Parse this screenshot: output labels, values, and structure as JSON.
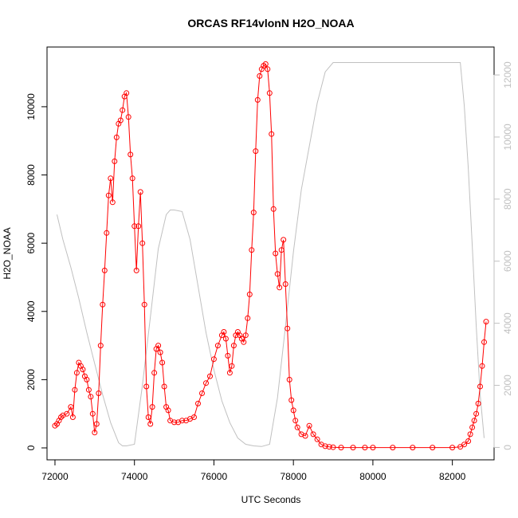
{
  "chart_data": {
    "type": "line",
    "title": "ORCAS RF14vlonN H2O_NOAA",
    "xlabel": "UTC Seconds",
    "ylabel": "H2O_NOAA",
    "xlim": [
      71800,
      83050
    ],
    "ylim": [
      -350,
      11750
    ],
    "x_ticks": [
      72000,
      74000,
      76000,
      78000,
      80000,
      82000
    ],
    "y_ticks": [
      0,
      2000,
      4000,
      6000,
      8000,
      10000
    ],
    "y2lim": [
      -400,
      12900
    ],
    "y2_ticks": [
      0,
      2000,
      4000,
      6000,
      8000,
      10000,
      12000
    ],
    "colors": {
      "primary": "#ff0000",
      "secondary": "#c0c0c0",
      "axis": "#000000",
      "right_axis": "#c0c0c0"
    },
    "series": [
      {
        "role": "primary",
        "marker": "circle",
        "x": [
          72000,
          72050,
          72100,
          72150,
          72200,
          72300,
          72400,
          72450,
          72500,
          72550,
          72600,
          72650,
          72700,
          72750,
          72800,
          72850,
          72900,
          72950,
          73000,
          73050,
          73100,
          73150,
          73200,
          73250,
          73300,
          73350,
          73400,
          73450,
          73500,
          73550,
          73600,
          73650,
          73700,
          73750,
          73800,
          73850,
          73900,
          73950,
          74000,
          74050,
          74100,
          74150,
          74200,
          74250,
          74300,
          74350,
          74400,
          74450,
          74500,
          74550,
          74600,
          74650,
          74700,
          74750,
          74800,
          74850,
          74900,
          75000,
          75100,
          75200,
          75300,
          75400,
          75500,
          75600,
          75700,
          75800,
          75900,
          76000,
          76100,
          76200,
          76250,
          76300,
          76350,
          76400,
          76450,
          76500,
          76550,
          76600,
          76650,
          76700,
          76750,
          76800,
          76850,
          76900,
          76950,
          77000,
          77050,
          77100,
          77150,
          77200,
          77250,
          77300,
          77350,
          77400,
          77450,
          77500,
          77550,
          77600,
          77650,
          77700,
          77750,
          77800,
          77850,
          77900,
          77950,
          78000,
          78050,
          78100,
          78200,
          78300,
          78400,
          78500,
          78600,
          78700,
          78800,
          78900,
          79000,
          79200,
          79500,
          79800,
          80000,
          80500,
          81000,
          81500,
          82000,
          82200,
          82300,
          82400,
          82450,
          82500,
          82550,
          82600,
          82650,
          82700,
          82750,
          82800,
          82850
        ],
        "y": [
          650,
          700,
          800,
          900,
          950,
          1000,
          1200,
          900,
          1700,
          2200,
          2500,
          2400,
          2300,
          2100,
          2000,
          1700,
          1500,
          1000,
          450,
          700,
          1600,
          3000,
          4200,
          5200,
          6300,
          7400,
          7900,
          7200,
          8400,
          9100,
          9500,
          9600,
          9900,
          10300,
          10400,
          9700,
          8600,
          7900,
          6500,
          5200,
          6500,
          7500,
          6000,
          4200,
          1800,
          900,
          700,
          1200,
          2200,
          2900,
          3000,
          2800,
          2500,
          1800,
          1200,
          1100,
          800,
          750,
          750,
          800,
          800,
          850,
          900,
          1300,
          1600,
          1900,
          2100,
          2600,
          3000,
          3300,
          3400,
          3200,
          2700,
          2200,
          2400,
          3000,
          3300,
          3400,
          3300,
          3200,
          3100,
          3300,
          3800,
          4500,
          5800,
          6900,
          8700,
          10200,
          10900,
          11100,
          11200,
          11250,
          11100,
          10400,
          9200,
          7000,
          5700,
          5100,
          4700,
          5800,
          6100,
          4800,
          3500,
          2000,
          1400,
          1100,
          800,
          600,
          400,
          350,
          650,
          400,
          250,
          100,
          50,
          30,
          20,
          10,
          10,
          10,
          10,
          10,
          10,
          10,
          10,
          30,
          100,
          200,
          400,
          600,
          800,
          1000,
          1300,
          1800,
          2400,
          3100,
          3700
        ]
      },
      {
        "role": "secondary",
        "marker": "none",
        "x": [
          72050,
          72200,
          72400,
          72600,
          72800,
          73000,
          73200,
          73400,
          73600,
          73700,
          73800,
          74000,
          74200,
          74400,
          74600,
          74800,
          74900,
          75000,
          75200,
          75400,
          75600,
          75800,
          76000,
          76200,
          76400,
          76600,
          76800,
          77000,
          77200,
          77400,
          77600,
          77800,
          78000,
          78200,
          78400,
          78600,
          78800,
          79000,
          79200,
          79500,
          80000,
          81000,
          82000,
          82200,
          82300,
          82400,
          82500,
          82600,
          82700,
          82800
        ],
        "y": [
          7500,
          6700,
          5800,
          4800,
          3700,
          2700,
          1700,
          800,
          150,
          50,
          50,
          100,
          2000,
          4200,
          6400,
          7500,
          7650,
          7650,
          7600,
          6700,
          5200,
          3700,
          2500,
          1500,
          800,
          300,
          100,
          50,
          30,
          100,
          1600,
          3900,
          6300,
          8300,
          9700,
          11100,
          12100,
          12400,
          12400,
          12400,
          12400,
          12400,
          12400,
          12400,
          11000,
          9000,
          6500,
          3900,
          1700,
          300
        ]
      }
    ]
  }
}
